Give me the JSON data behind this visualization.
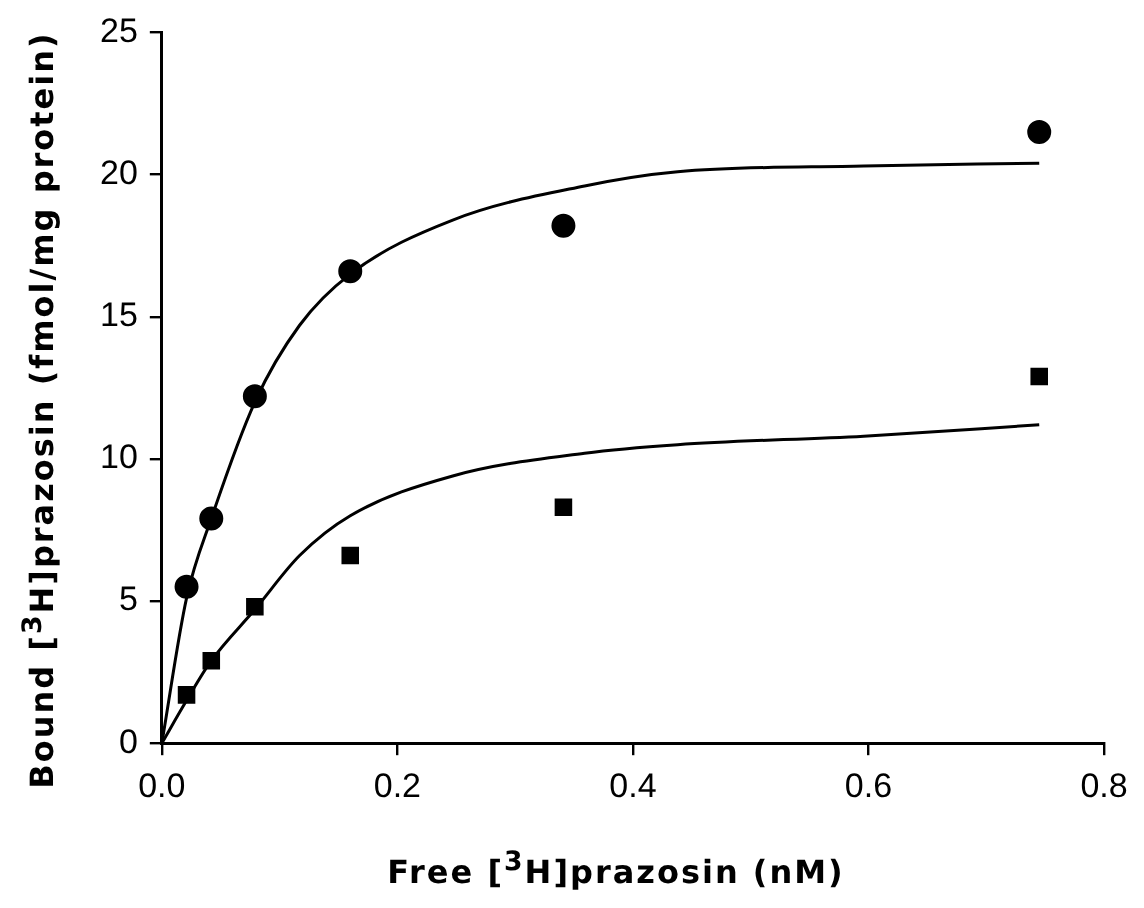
{
  "chart_data": {
    "type": "scatter",
    "xlabel": "Free [$^{3}$H]prazosin (nM)",
    "ylabel": "Bound [$^{3}$H]prazosin (fmol/mg protein)",
    "xlim": [
      0,
      0.8
    ],
    "ylim": [
      0,
      25
    ],
    "xticks": [
      {
        "value": 0,
        "label": "0.0"
      },
      {
        "value": 0.2,
        "label": "0.2"
      },
      {
        "value": 0.4,
        "label": "0.4"
      },
      {
        "value": 0.6,
        "label": "0.6"
      },
      {
        "value": 0.8,
        "label": "0.8"
      }
    ],
    "yticks": [
      0,
      5,
      10,
      15,
      20,
      25
    ],
    "grid": false,
    "legend": false,
    "series": [
      {
        "type": "scatter",
        "marker": "circle",
        "color": "#000000",
        "x": [
          0.021,
          0.042,
          0.079,
          0.16,
          0.341,
          0.745
        ],
        "values": [
          5.5,
          7.9,
          12.2,
          16.6,
          18.2,
          21.5
        ]
      },
      {
        "type": "scatter",
        "marker": "square",
        "color": "#000000",
        "x": [
          0.021,
          0.042,
          0.079,
          0.16,
          0.341,
          0.745
        ],
        "values": [
          1.7,
          2.9,
          4.8,
          6.6,
          8.3,
          12.9
        ]
      },
      {
        "type": "line",
        "marker": "none",
        "line_style": "solid",
        "color": "#000000",
        "x": [
          0,
          0.021,
          0.042,
          0.079,
          0.117,
          0.16,
          0.247,
          0.359,
          0.438,
          0.596,
          0.745
        ],
        "values": [
          0,
          5.1,
          7.9,
          12.0,
          14.7,
          16.5,
          18.4,
          19.6,
          20.1,
          20.3,
          20.4
        ]
      },
      {
        "type": "line",
        "marker": "none",
        "line_style": "solid",
        "color": "#000000",
        "x": [
          0,
          0.021,
          0.042,
          0.079,
          0.117,
          0.16,
          0.247,
          0.359,
          0.438,
          0.596,
          0.745
        ],
        "values": [
          0,
          1.5,
          2.9,
          4.7,
          6.6,
          8.0,
          9.4,
          10.2,
          10.5,
          10.8,
          11.2
        ]
      }
    ]
  }
}
